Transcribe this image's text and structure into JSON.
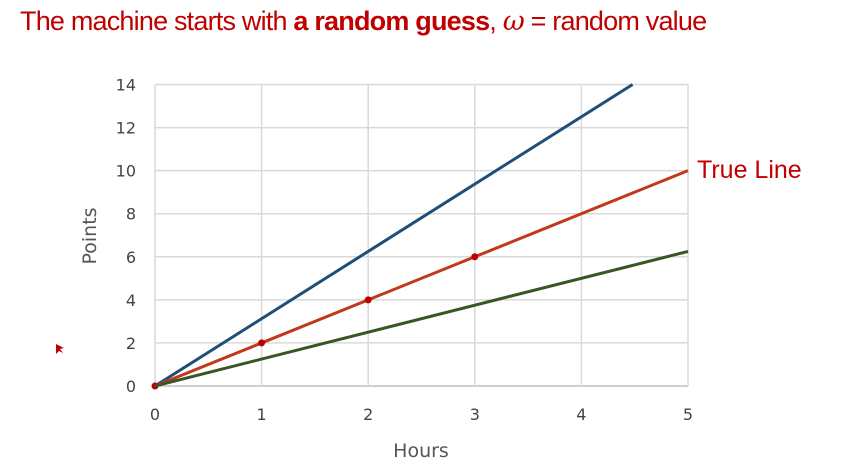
{
  "title": {
    "part1": "The machine starts with ",
    "bold": "a random guess",
    "part2": ", ",
    "symbol": "ω",
    "part3": " = random value"
  },
  "chart_data": {
    "type": "line",
    "xlabel": "Hours",
    "ylabel": "Points",
    "xlim": [
      0,
      5
    ],
    "ylim": [
      0,
      14
    ],
    "xticks": [
      "0",
      "1",
      "2",
      "3",
      "4",
      "5"
    ],
    "yticks": [
      "0",
      "2",
      "4",
      "6",
      "8",
      "10",
      "12",
      "14"
    ],
    "grid": true,
    "series": [
      {
        "color": "#1f4e79",
        "x": [
          0,
          4.48
        ],
        "y": [
          0,
          14
        ],
        "markers": false
      },
      {
        "name": "True Line",
        "color": "#c0391b",
        "x": [
          0,
          1,
          2,
          3,
          5
        ],
        "y": [
          0,
          2,
          4,
          6,
          10
        ],
        "markers_at": [
          0,
          1,
          2,
          3
        ]
      },
      {
        "color": "#375623",
        "x": [
          0,
          5
        ],
        "y": [
          0,
          6.25
        ],
        "markers": false
      }
    ],
    "annotation": "True Line"
  }
}
